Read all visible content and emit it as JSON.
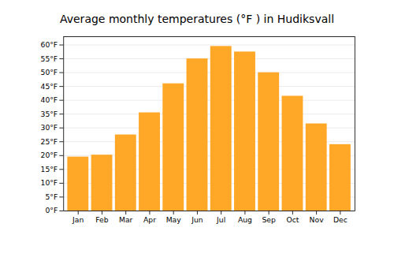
{
  "chart_data": {
    "type": "bar",
    "title": "Average monthly temperatures (°F ) in Hudiksvall",
    "categories": [
      "Jan",
      "Feb",
      "Mar",
      "Apr",
      "May",
      "Jun",
      "Jul",
      "Aug",
      "Sep",
      "Oct",
      "Nov",
      "Dec"
    ],
    "values": [
      19.5,
      20.2,
      27.5,
      35.5,
      46.0,
      55.0,
      59.5,
      57.5,
      50.0,
      41.5,
      31.5,
      24.0
    ],
    "color": "#FFA726",
    "ylim": [
      0,
      63
    ],
    "yticks": [
      {
        "value": 0,
        "label": "0°F"
      },
      {
        "value": 5,
        "label": "5°F"
      },
      {
        "value": 10,
        "label": "10°F"
      },
      {
        "value": 15,
        "label": "15°F"
      },
      {
        "value": 20,
        "label": "20°F"
      },
      {
        "value": 25,
        "label": "25°F"
      },
      {
        "value": 30,
        "label": "30°F"
      },
      {
        "value": 35,
        "label": "35°F"
      },
      {
        "value": 40,
        "label": "40°F"
      },
      {
        "value": 45,
        "label": "45°F"
      },
      {
        "value": 50,
        "label": "50°F"
      },
      {
        "value": 55,
        "label": "55°F"
      },
      {
        "value": 60,
        "label": "60°F"
      }
    ],
    "grid": true
  }
}
